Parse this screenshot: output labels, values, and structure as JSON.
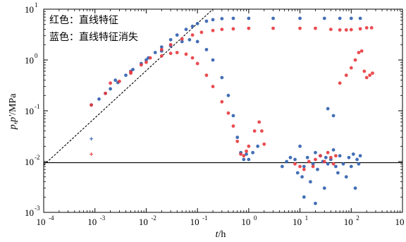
{
  "chart_data": {
    "type": "scatter",
    "x_scale": "log",
    "y_scale": "log",
    "xlim": [
      0.0001,
      1000
    ],
    "ylim": [
      0.001,
      10
    ],
    "xlabel_italic": "t",
    "xlabel_unit": "/h",
    "ylabel_italic": "p,p'",
    "ylabel_unit": "/MPa",
    "x_ticks": [
      {
        "base": "10",
        "exp": "-4"
      },
      {
        "base": "10",
        "exp": "-3"
      },
      {
        "base": "10",
        "exp": "-2"
      },
      {
        "base": "10",
        "exp": "-1"
      },
      {
        "base": "10",
        "exp": "0"
      },
      {
        "base": "10",
        "exp": "1"
      },
      {
        "base": "10",
        "exp": "2"
      },
      {
        "base": "10",
        "exp": "3"
      }
    ],
    "y_ticks": [
      {
        "base": "10",
        "exp": "-3"
      },
      {
        "base": "10",
        "exp": "-2"
      },
      {
        "base": "10",
        "exp": "-1"
      },
      {
        "base": "10",
        "exp": "0"
      },
      {
        "base": "10",
        "exp": "1"
      }
    ],
    "legend": {
      "placement": "top-left",
      "line1": "红色：直线特征",
      "line2": "蓝色：直线特征消失"
    },
    "colors": {
      "red": "#e8383d",
      "blue": "#2f5fae"
    },
    "reference_lines": {
      "unit_slope": {
        "style": "dashed",
        "points": [
          [
            0.0001,
            0.0085
          ],
          [
            0.2,
            10
          ]
        ]
      },
      "horizontal": {
        "style": "solid",
        "y": 0.0095
      }
    },
    "series": [
      {
        "color": "blue",
        "role": "pressure",
        "points": [
          [
            0.00085,
            0.13
          ],
          [
            0.0012,
            0.17
          ],
          [
            0.0016,
            0.22
          ],
          [
            0.002,
            0.27
          ],
          [
            0.0028,
            0.36
          ],
          [
            0.004,
            0.5
          ],
          [
            0.0055,
            0.65
          ],
          [
            0.008,
            0.85
          ],
          [
            0.011,
            1.1
          ],
          [
            0.015,
            1.4
          ],
          [
            0.02,
            1.8
          ],
          [
            0.03,
            2.5
          ],
          [
            0.04,
            3.1
          ],
          [
            0.06,
            4.0
          ],
          [
            0.08,
            4.6
          ],
          [
            0.1,
            5.2
          ],
          [
            0.15,
            5.8
          ],
          [
            0.2,
            6.2
          ],
          [
            0.3,
            6.5
          ],
          [
            0.5,
            6.6
          ],
          [
            1,
            6.6
          ],
          [
            3,
            6.6
          ],
          [
            10,
            6.6
          ],
          [
            30,
            6.6
          ],
          [
            60,
            6.6
          ],
          [
            100,
            6.6
          ],
          [
            150,
            6.6
          ]
        ]
      },
      {
        "color": "blue",
        "role": "derivative",
        "points": [
          [
            0.00085,
            0.028
          ],
          [
            0.0025,
            0.4
          ],
          [
            0.005,
            0.6
          ],
          [
            0.01,
            1.0
          ],
          [
            0.02,
            1.5
          ],
          [
            0.03,
            1.9
          ],
          [
            0.05,
            2.3
          ],
          [
            0.07,
            2.5
          ],
          [
            0.1,
            2.3
          ],
          [
            0.15,
            1.6
          ],
          [
            0.2,
            1.0
          ],
          [
            0.3,
            0.45
          ],
          [
            0.4,
            0.2
          ],
          [
            0.5,
            0.08
          ],
          [
            0.6,
            0.03
          ],
          [
            0.7,
            0.015
          ],
          [
            0.8,
            0.011
          ],
          [
            0.9,
            0.014
          ],
          [
            1.0,
            0.011
          ],
          [
            1.2,
            0.015
          ],
          [
            1.5,
            0.02
          ],
          [
            4.5,
            0.008
          ],
          [
            5.5,
            0.01
          ],
          [
            6.5,
            0.012
          ],
          [
            8,
            0.011
          ],
          [
            9,
            0.006
          ],
          [
            10,
            0.02
          ],
          [
            11,
            0.005
          ],
          [
            12,
            0.008
          ],
          [
            14,
            0.012
          ],
          [
            16,
            0.004
          ],
          [
            18,
            0.009
          ],
          [
            20,
            0.015
          ],
          [
            22,
            0.007
          ],
          [
            25,
            0.013
          ],
          [
            28,
            0.01
          ],
          [
            30,
            0.003
          ],
          [
            32,
            0.012
          ],
          [
            35,
            0.009
          ],
          [
            40,
            0.011
          ],
          [
            45,
            0.017
          ],
          [
            50,
            0.008
          ],
          [
            55,
            0.006
          ],
          [
            60,
            0.013
          ],
          [
            70,
            0.009
          ],
          [
            80,
            0.005
          ],
          [
            90,
            0.012
          ],
          [
            100,
            0.008
          ],
          [
            110,
            0.014
          ],
          [
            120,
            0.003
          ],
          [
            130,
            0.011
          ],
          [
            140,
            0.009
          ],
          [
            150,
            0.013
          ],
          [
            35,
            0.11
          ],
          [
            45,
            0.08
          ],
          [
            12,
            0.002
          ],
          [
            20,
            0.0015
          ]
        ]
      },
      {
        "color": "red",
        "role": "pressure",
        "points": [
          [
            0.00085,
            0.13
          ],
          [
            0.0016,
            0.22
          ],
          [
            0.003,
            0.38
          ],
          [
            0.005,
            0.55
          ],
          [
            0.008,
            0.8
          ],
          [
            0.012,
            1.1
          ],
          [
            0.02,
            1.6
          ],
          [
            0.03,
            2.0
          ],
          [
            0.05,
            2.6
          ],
          [
            0.08,
            3.1
          ],
          [
            0.12,
            3.5
          ],
          [
            0.2,
            3.8
          ],
          [
            0.3,
            4.0
          ],
          [
            0.5,
            4.1
          ],
          [
            1,
            4.2
          ],
          [
            3,
            4.2
          ],
          [
            10,
            4.2
          ],
          [
            20,
            4.2
          ],
          [
            40,
            4.0
          ],
          [
            60,
            3.9
          ],
          [
            80,
            3.9
          ],
          [
            100,
            3.95
          ],
          [
            150,
            4.1
          ],
          [
            200,
            4.3
          ],
          [
            250,
            4.3
          ]
        ]
      },
      {
        "color": "red",
        "role": "derivative",
        "points": [
          [
            0.00085,
            0.014
          ],
          [
            0.002,
            0.35
          ],
          [
            0.005,
            0.58
          ],
          [
            0.01,
            0.9
          ],
          [
            0.02,
            1.2
          ],
          [
            0.03,
            1.35
          ],
          [
            0.04,
            1.4
          ],
          [
            0.06,
            1.3
          ],
          [
            0.08,
            1.1
          ],
          [
            0.1,
            0.85
          ],
          [
            0.15,
            0.5
          ],
          [
            0.2,
            0.3
          ],
          [
            0.3,
            0.15
          ],
          [
            0.4,
            0.09
          ],
          [
            0.5,
            0.05
          ],
          [
            0.6,
            0.025
          ],
          [
            0.7,
            0.014
          ],
          [
            0.8,
            0.013
          ],
          [
            0.9,
            0.016
          ],
          [
            1.0,
            0.02
          ],
          [
            1.3,
            0.04
          ],
          [
            1.6,
            0.06
          ],
          [
            1.8,
            0.04
          ],
          [
            2.0,
            0.022
          ],
          [
            8,
            0.009
          ],
          [
            10,
            0.008
          ],
          [
            12,
            0.007
          ],
          [
            15,
            0.01
          ],
          [
            18,
            0.008
          ],
          [
            20,
            0.011
          ],
          [
            25,
            0.013
          ],
          [
            30,
            0.01
          ],
          [
            35,
            0.015
          ],
          [
            40,
            0.012
          ],
          [
            45,
            0.009
          ],
          [
            50,
            0.013
          ],
          [
            60,
            0.35
          ],
          [
            80,
            0.5
          ],
          [
            100,
            0.7
          ],
          [
            120,
            1.0
          ],
          [
            140,
            1.4
          ],
          [
            160,
            1.5
          ],
          [
            180,
            0.6
          ],
          [
            200,
            0.45
          ],
          [
            230,
            0.5
          ],
          [
            260,
            0.55
          ]
        ]
      }
    ]
  }
}
